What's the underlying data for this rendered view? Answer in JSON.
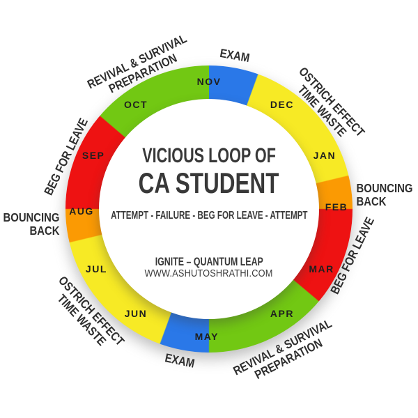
{
  "center": {
    "title_line1": "VICIOUS LOOP OF",
    "title_line2": "CA STUDENT",
    "subtitle": "ATTEMPT - FAILURE - BEG FOR LEAVE - ATTEMPT",
    "brand": "IGNITE – QUANTUM LEAP",
    "website": "WWW.ASHUTOSHRATHI.COM"
  },
  "colors": {
    "blue": "#2A78E8",
    "yellow": "#F7EA25",
    "orange": "#FB9A03",
    "red": "#EE1212",
    "green": "#72C813",
    "text_dark": "#2E2E2E"
  },
  "chart_data": {
    "type": "pie",
    "subtype": "donut-cycle",
    "title": "VICIOUS LOOP OF CA STUDENT",
    "legend_position": "around-ring",
    "month_label_radius": 183,
    "phases": [
      {
        "name": "EXAM",
        "color": "blue",
        "months": [
          "NOV",
          "MAY"
        ]
      },
      {
        "name": "OSTRICH EFFECT TIME WASTE",
        "color": "yellow",
        "months": [
          "DEC",
          "JAN",
          "JUN",
          "JUL"
        ]
      },
      {
        "name": "BOUNCING BACK",
        "color": "orange",
        "months": [
          "FEB",
          "AUG"
        ]
      },
      {
        "name": "BEG FOR LEAVE",
        "color": "red",
        "months": [
          "MAR",
          "SEP"
        ]
      },
      {
        "name": "REVIVAL & SURVIVAL PREPARATION",
        "color": "green",
        "months": [
          "APR",
          "OCT"
        ]
      }
    ],
    "segments": [
      {
        "month": "NOV",
        "phase": "EXAM",
        "color": "blue",
        "start_deg": 0,
        "end_deg": 20,
        "label_angle_deg": 0
      },
      {
        "month": "DEC",
        "phase": "OSTRICH EFFECT TIME WASTE",
        "color": "yellow",
        "start_deg": 20,
        "end_deg": 48,
        "label_angle_deg": 35
      },
      {
        "month": "JAN",
        "phase": "OSTRICH EFFECT TIME WASTE",
        "color": "yellow",
        "start_deg": 48,
        "end_deg": 76.5,
        "label_angle_deg": 65
      },
      {
        "month": "FEB",
        "phase": "BOUNCING BACK",
        "color": "orange",
        "start_deg": 76.5,
        "end_deg": 90,
        "label_angle_deg": 89
      },
      {
        "month": "MAR",
        "phase": "BEG FOR LEAVE",
        "color": "red",
        "start_deg": 90,
        "end_deg": 130,
        "label_angle_deg": 118
      },
      {
        "month": "APR",
        "phase": "REVIVAL & SURVIVAL PREPARATION",
        "color": "green",
        "start_deg": 130,
        "end_deg": 180,
        "label_angle_deg": 145
      },
      {
        "month": "MAY",
        "phase": "EXAM",
        "color": "blue",
        "start_deg": 180,
        "end_deg": 200,
        "label_angle_deg": 181
      },
      {
        "month": "JUN",
        "phase": "OSTRICH EFFECT TIME WASTE",
        "color": "yellow",
        "start_deg": 200,
        "end_deg": 228,
        "label_angle_deg": 215
      },
      {
        "month": "JUL",
        "phase": "OSTRICH EFFECT TIME WASTE",
        "color": "yellow",
        "start_deg": 228,
        "end_deg": 256.5,
        "label_angle_deg": 242
      },
      {
        "month": "AUG",
        "phase": "BOUNCING BACK",
        "color": "orange",
        "start_deg": 256.5,
        "end_deg": 270,
        "label_angle_deg": 269
      },
      {
        "month": "SEP",
        "phase": "BEG FOR LEAVE",
        "color": "red",
        "start_deg": 270,
        "end_deg": 310.5,
        "label_angle_deg": 295
      },
      {
        "month": "OCT",
        "phase": "REVIVAL & SURVIVAL PREPARATION",
        "color": "green",
        "start_deg": 310.5,
        "end_deg": 360,
        "label_angle_deg": 325
      }
    ],
    "outer_labels": [
      {
        "id": "exam-top",
        "lines": [
          "EXAM"
        ],
        "angle_deg": 9.5,
        "radius": 223,
        "rotation_deg": 10,
        "align": "center"
      },
      {
        "id": "ostrich-effect-top-right",
        "lines": [
          "OSTRICH EFFECT",
          "TIME WASTE"
        ],
        "angle_deg": 49,
        "radius": 224,
        "rotation_deg": 47,
        "align": "center"
      },
      {
        "id": "bouncing-back-right",
        "lines": [
          "BOUNCING",
          "BACK"
        ],
        "angle_deg": 85.5,
        "radius": 253,
        "rotation_deg": 0,
        "align": "left"
      },
      {
        "id": "beg-for-leave-right",
        "lines": [
          "BEG FOR LEAVE"
        ],
        "angle_deg": 108,
        "radius": 217,
        "rotation_deg": -64,
        "align": "center"
      },
      {
        "id": "revival-bottom-right",
        "lines": [
          "REVIVAL & SURVIVAL",
          "PREPARATION"
        ],
        "angle_deg": 152,
        "radius": 234,
        "rotation_deg": -27,
        "align": "center"
      },
      {
        "id": "exam-bottom",
        "lines": [
          "EXAM"
        ],
        "angle_deg": 191,
        "radius": 222,
        "rotation_deg": 12,
        "align": "center"
      },
      {
        "id": "ostrich-effect-bottom-left",
        "lines": [
          "OSTRICH EFFECT",
          "TIME WASTE"
        ],
        "angle_deg": 229,
        "radius": 233,
        "rotation_deg": 47,
        "align": "center"
      },
      {
        "id": "bouncing-back-left",
        "lines": [
          "BOUNCING",
          "BACK"
        ],
        "angle_deg": 265,
        "radius": 256,
        "rotation_deg": 0,
        "align": "right"
      },
      {
        "id": "beg-for-leave-left",
        "lines": [
          "BEG FOR LEAVE"
        ],
        "angle_deg": 290,
        "radius": 218,
        "rotation_deg": -64,
        "align": "center"
      },
      {
        "id": "revival-top-left",
        "lines": [
          "REVIVAL & SURVIVAL",
          "PREPARATION"
        ],
        "angle_deg": 334,
        "radius": 226,
        "rotation_deg": -26,
        "align": "center"
      }
    ]
  }
}
